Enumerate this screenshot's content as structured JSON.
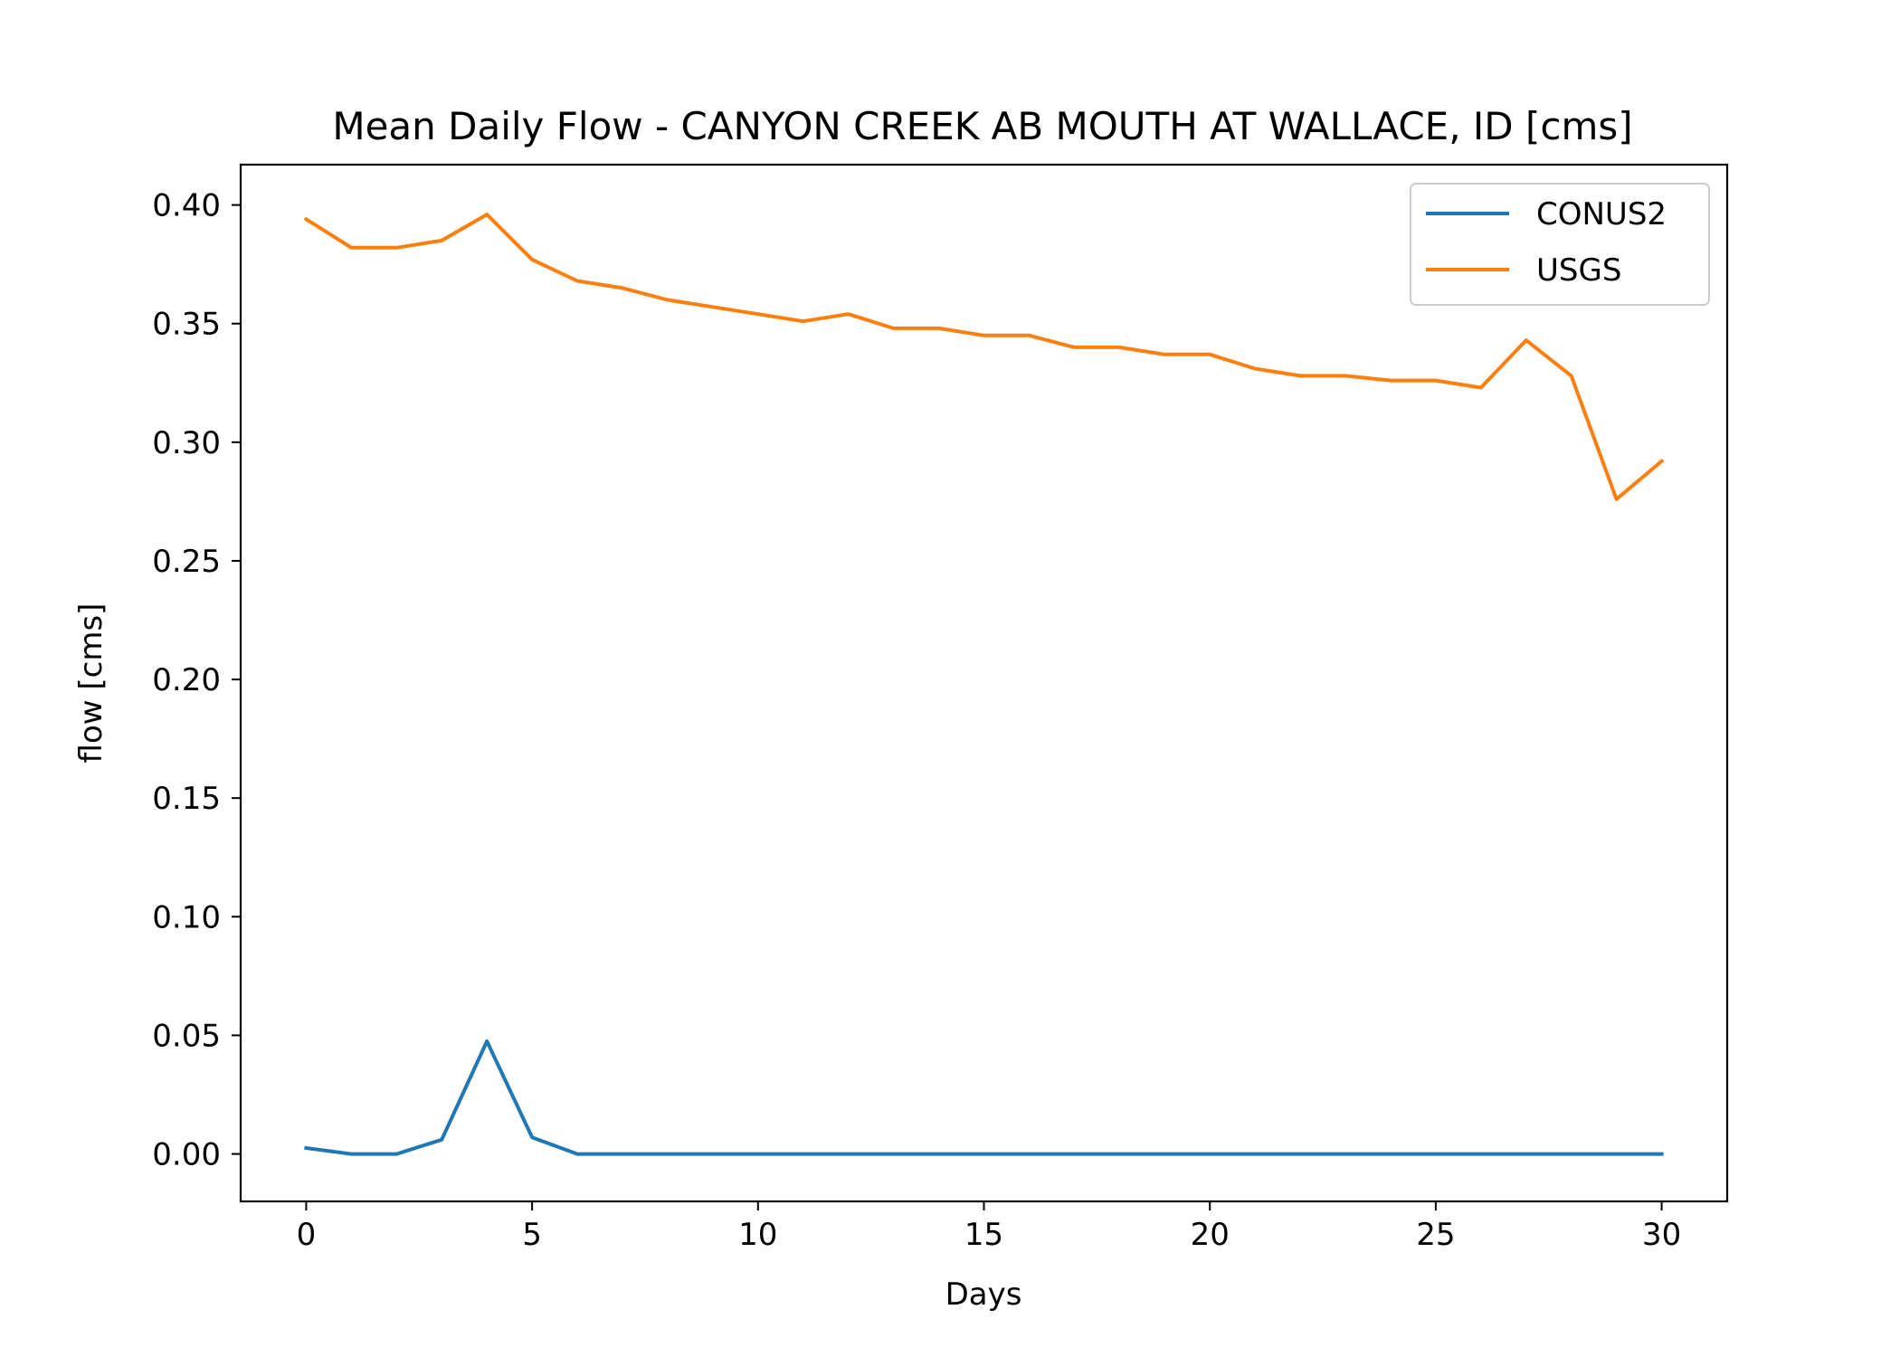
{
  "chart_data": {
    "type": "line",
    "title": "Mean Daily Flow - CANYON CREEK AB MOUTH AT WALLACE, ID [cms]",
    "xlabel": "Days",
    "ylabel": "flow [cms]",
    "xlim": [
      -1.45,
      31.45
    ],
    "ylim": [
      -0.02,
      0.417
    ],
    "xticks": [
      0,
      5,
      10,
      15,
      20,
      25,
      30
    ],
    "xtick_labels": [
      "0",
      "5",
      "10",
      "15",
      "20",
      "25",
      "30"
    ],
    "yticks": [
      0.0,
      0.05,
      0.1,
      0.15,
      0.2,
      0.25,
      0.3,
      0.35,
      0.4
    ],
    "ytick_labels": [
      "0.00",
      "0.05",
      "0.10",
      "0.15",
      "0.20",
      "0.25",
      "0.30",
      "0.35",
      "0.40"
    ],
    "grid": false,
    "legend_position": "top-right",
    "x": [
      0,
      1,
      2,
      3,
      4,
      5,
      6,
      7,
      8,
      9,
      10,
      11,
      12,
      13,
      14,
      15,
      16,
      17,
      18,
      19,
      20,
      21,
      22,
      23,
      24,
      25,
      26,
      27,
      28,
      29,
      30
    ],
    "series": [
      {
        "name": "CONUS2",
        "color": "#1f77b4",
        "values": [
          0.0025,
          0.0,
          0.0,
          0.006,
          0.0475,
          0.007,
          0.0,
          0.0,
          0.0,
          0.0,
          0.0,
          0.0,
          0.0,
          0.0,
          0.0,
          0.0,
          0.0,
          0.0,
          0.0,
          0.0,
          0.0,
          0.0,
          0.0,
          0.0,
          0.0,
          0.0,
          0.0,
          0.0,
          0.0,
          0.0,
          0.0
        ]
      },
      {
        "name": "USGS",
        "color": "#ff7f0e",
        "values": [
          0.394,
          0.382,
          0.382,
          0.385,
          0.396,
          0.377,
          0.368,
          0.365,
          0.36,
          0.357,
          0.354,
          0.351,
          0.354,
          0.348,
          0.348,
          0.345,
          0.345,
          0.34,
          0.34,
          0.337,
          0.337,
          0.331,
          0.328,
          0.328,
          0.326,
          0.326,
          0.323,
          0.343,
          0.328,
          0.276,
          0.292
        ]
      }
    ]
  }
}
